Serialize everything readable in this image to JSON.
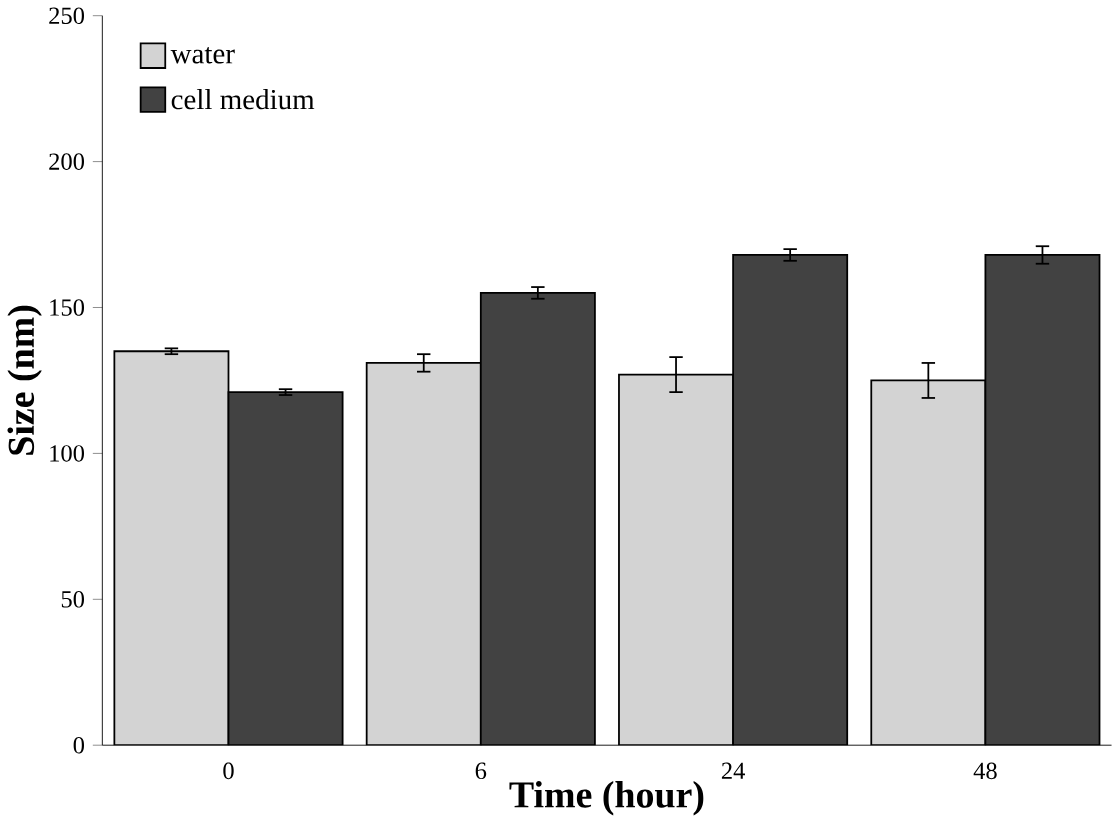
{
  "chart_data": {
    "type": "bar",
    "xlabel": "Time (hour)",
    "ylabel": "Size (nm)",
    "categories": [
      "0",
      "6",
      "24",
      "48"
    ],
    "series": [
      {
        "name": "water",
        "color": "#d3d3d3",
        "values": [
          135,
          131,
          127,
          125
        ],
        "errors": [
          1,
          3,
          6,
          6
        ]
      },
      {
        "name": "cell medium",
        "color": "#424242",
        "values": [
          121,
          155,
          168,
          168
        ],
        "errors": [
          1,
          2,
          2,
          3
        ]
      }
    ],
    "ylim": [
      0,
      250
    ],
    "yticks": [
      0,
      50,
      100,
      150,
      200,
      250
    ],
    "legend": "top left",
    "grid": false
  }
}
